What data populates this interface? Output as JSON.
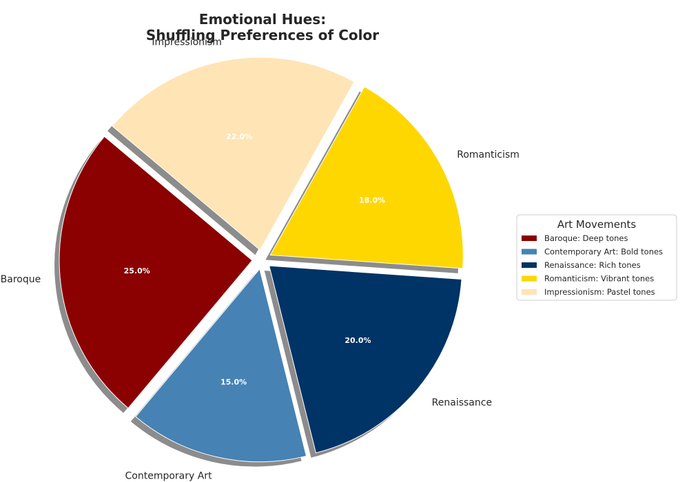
{
  "chart_data": {
    "type": "pie",
    "title": [
      "Emotional Hues:",
      "Shuffling Preferences of Color"
    ],
    "categories": [
      "Baroque",
      "Contemporary Art",
      "Renaissance",
      "Romanticism",
      "Impressionism"
    ],
    "values": [
      25.0,
      15.0,
      20.0,
      18.0,
      22.0
    ],
    "percent_labels": [
      "25.0%",
      "15.0%",
      "20.0%",
      "18.0%",
      "22.0%"
    ],
    "colors": [
      "#8b0000",
      "#4682b4",
      "#003366",
      "#ffd700",
      "#ffe4b5"
    ],
    "start_angle_deg": 140,
    "direction": "counterclockwise",
    "explode": [
      0.05,
      0.05,
      0.05,
      0.05,
      0.05
    ],
    "shadow": true,
    "legend": {
      "title": "Art Movements",
      "placement": "center-right",
      "entries": [
        "Baroque: Deep tones",
        "Contemporary Art: Bold tones",
        "Renaissance: Rich tones",
        "Romanticism: Vibrant tones",
        "Impressionism: Pastel tones"
      ]
    }
  }
}
